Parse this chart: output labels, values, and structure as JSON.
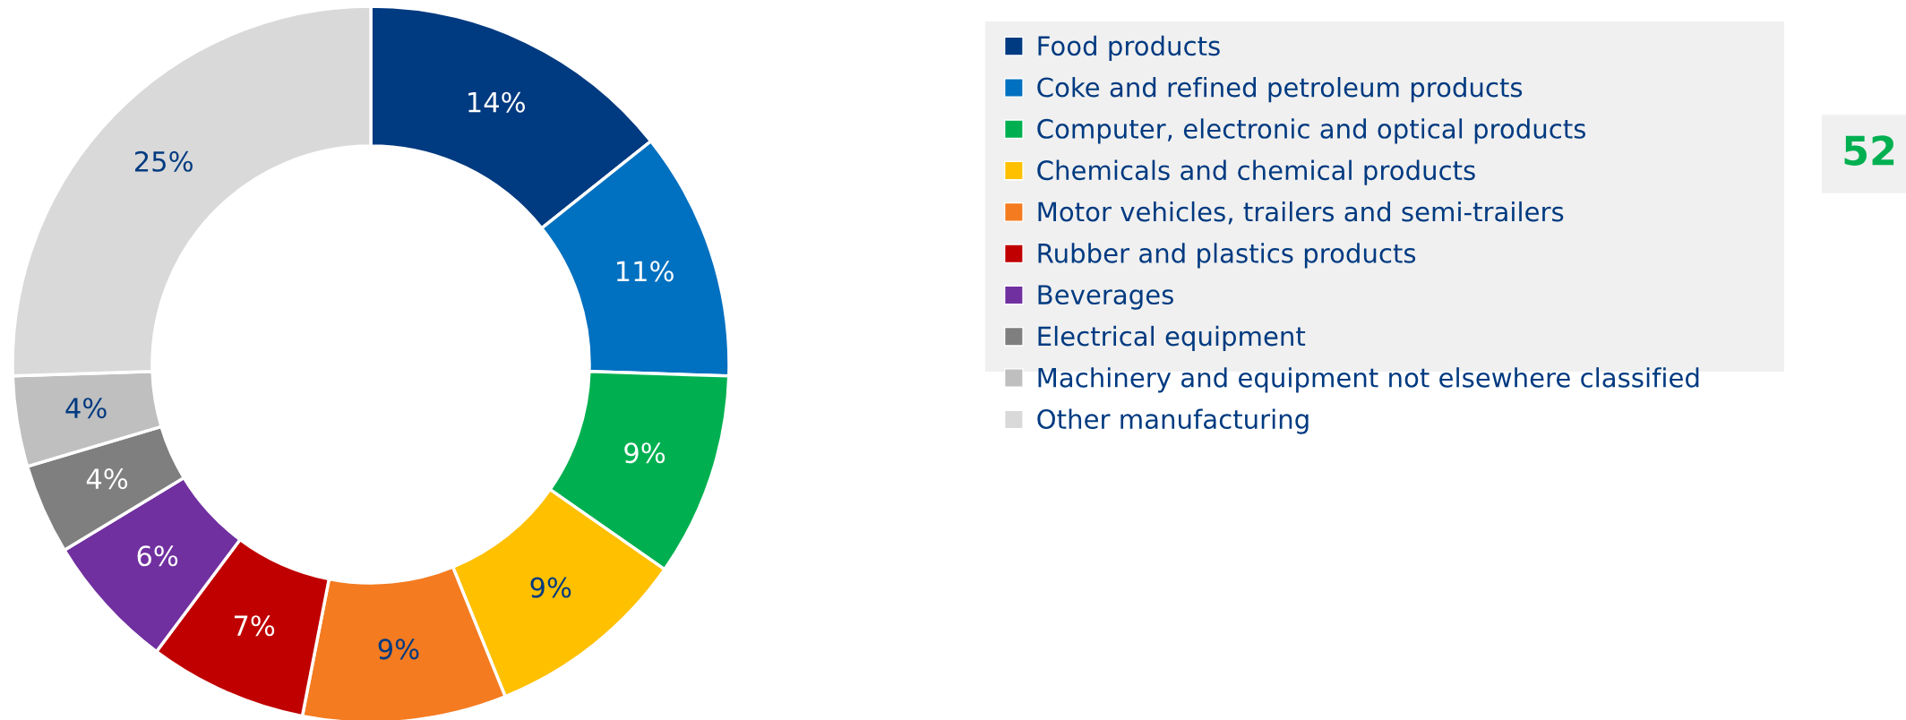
{
  "chart_data": {
    "type": "donut",
    "categories": [
      "Food products",
      "Coke and refined petroleum products",
      "Computer, electronic and optical products",
      "Chemicals and chemical products",
      "Motor vehicles, trailers and semi-trailers",
      "Rubber and plastics products",
      "Beverages",
      "Electrical equipment",
      "Machinery and equipment not elsewhere classified",
      "Other manufacturing"
    ],
    "values": [
      14,
      11,
      9,
      9,
      9,
      7,
      6,
      4,
      4,
      25
    ],
    "colors": [
      "#003a80",
      "#0070c0",
      "#00b050",
      "#ffc000",
      "#f47b20",
      "#c00000",
      "#7030a0",
      "#7f7f7f",
      "#bfbfbf",
      "#d9d9d9"
    ],
    "value_labels": [
      "14%",
      "11%",
      "9%",
      "9%",
      "9%",
      "7%",
      "6%",
      "4%",
      "4%",
      "25%"
    ],
    "legend": "right",
    "annotations": [
      "52"
    ]
  }
}
